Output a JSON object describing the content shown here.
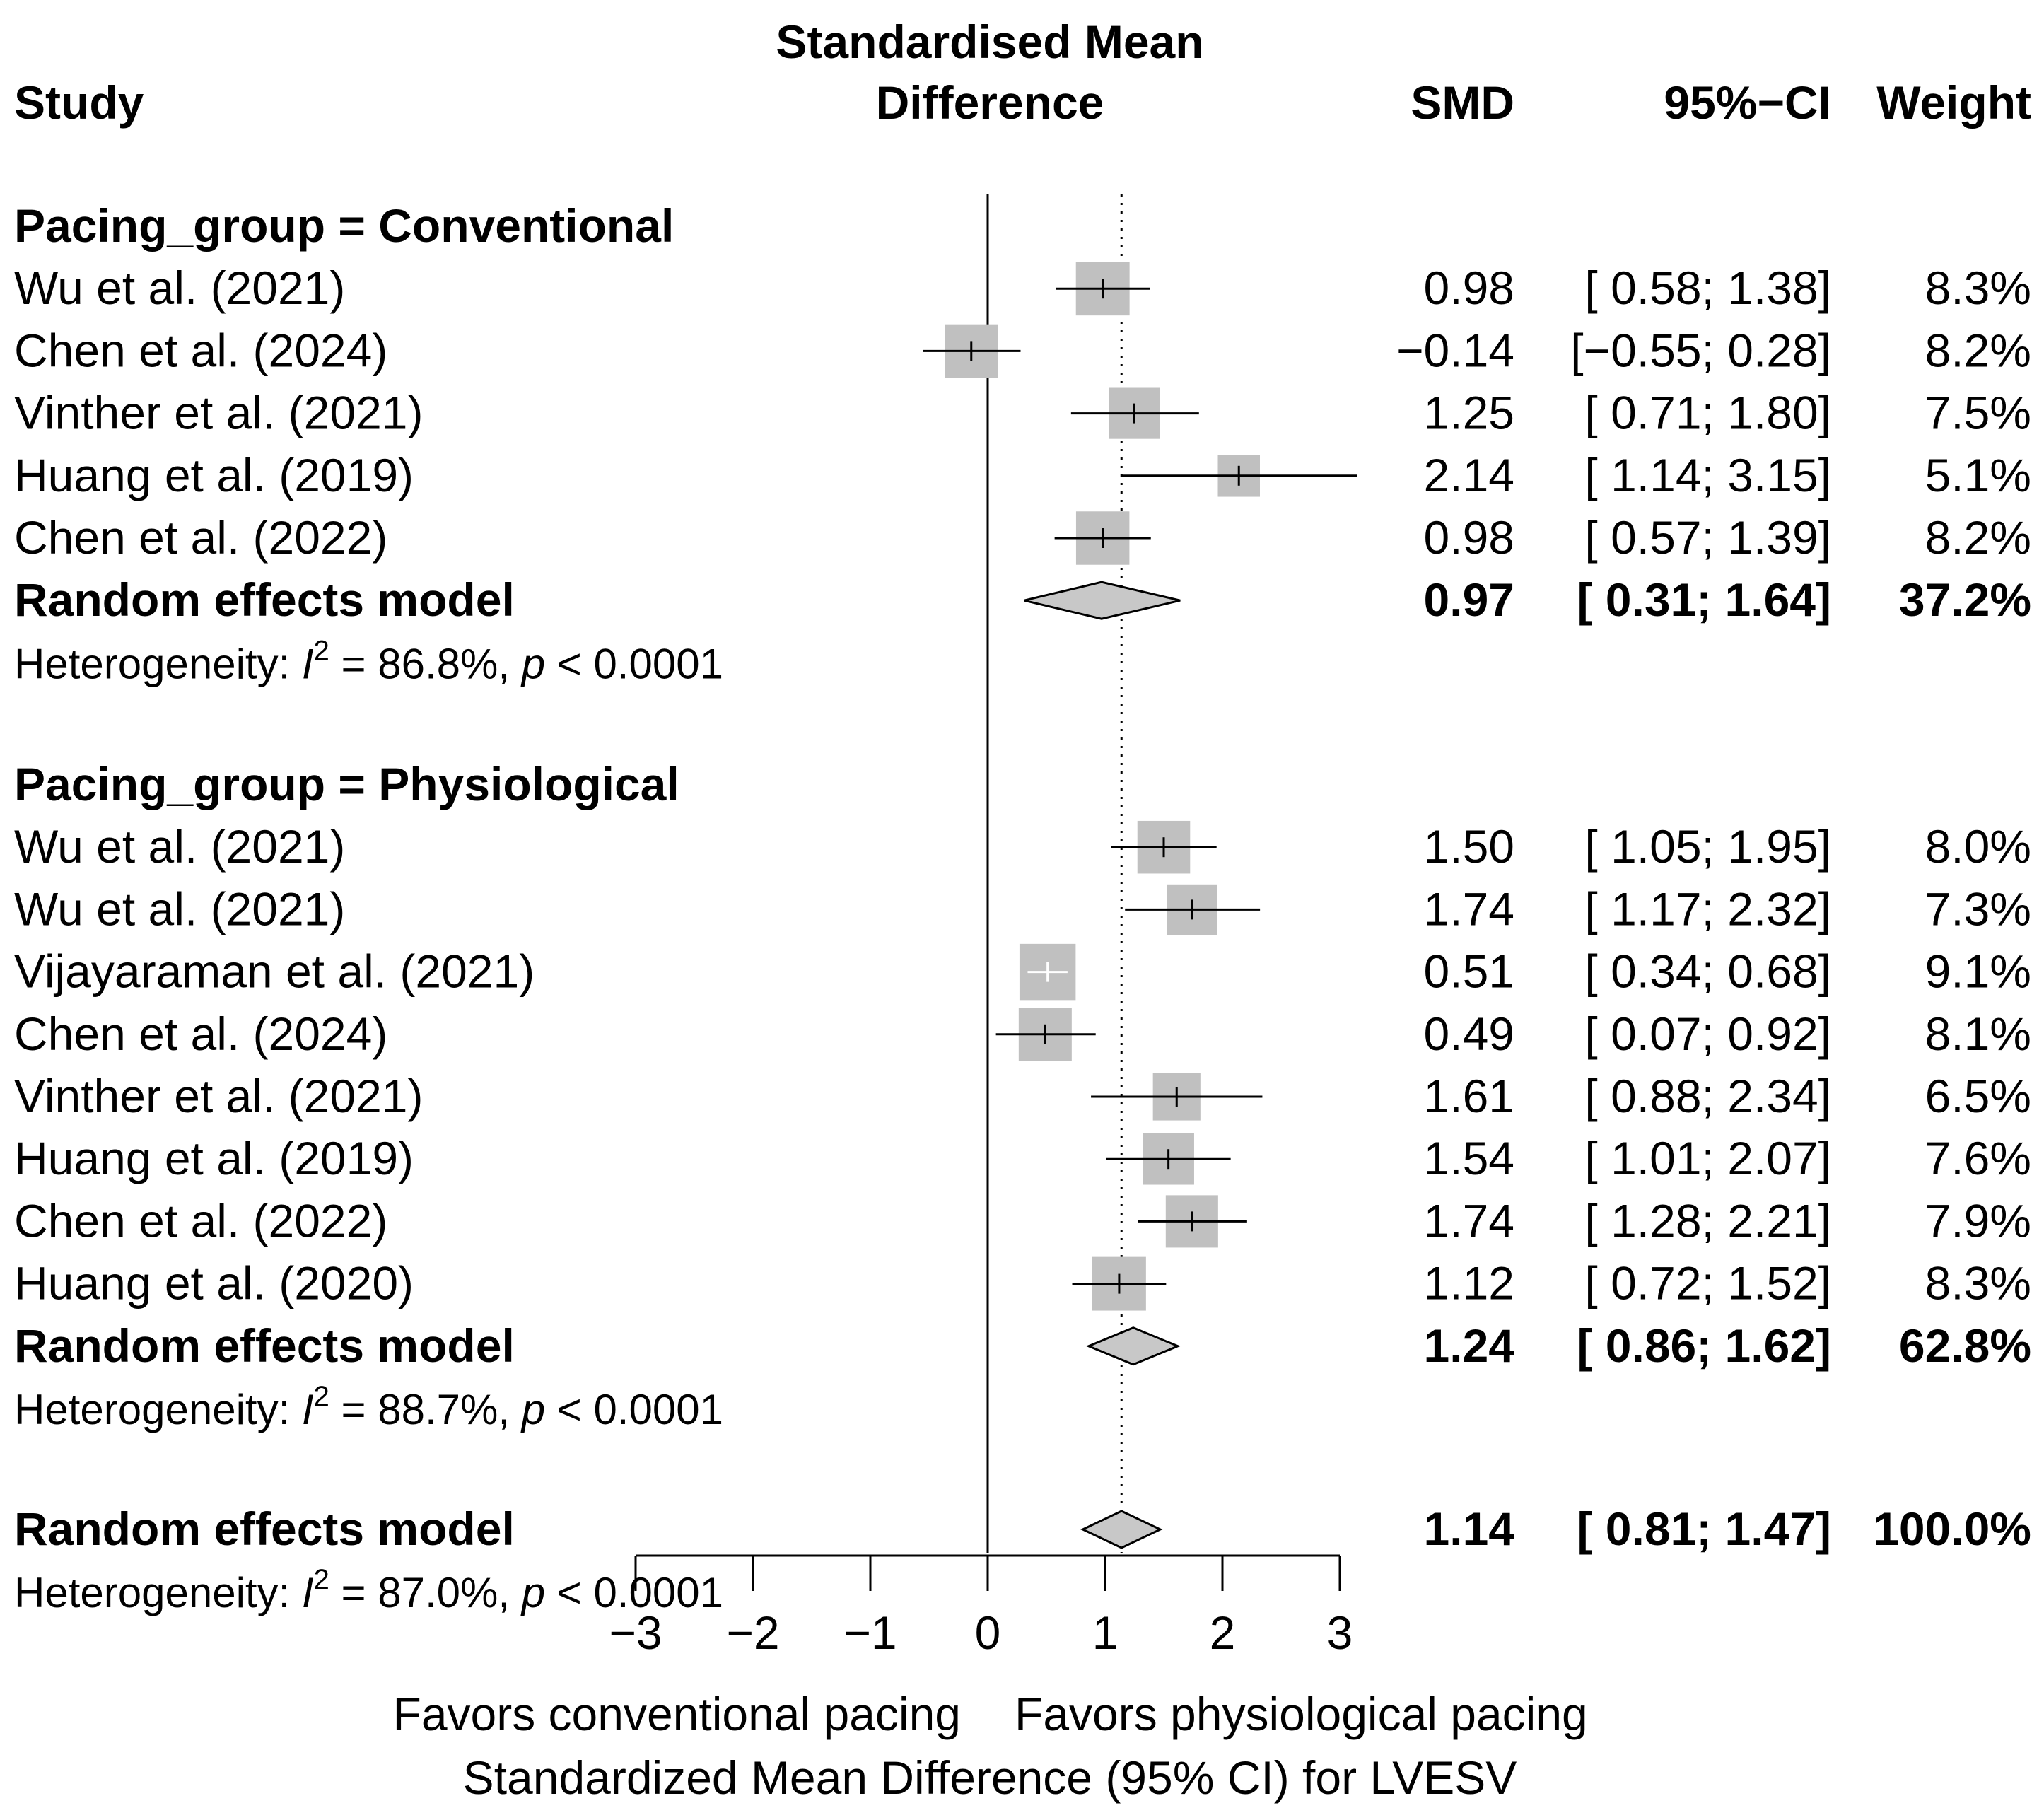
{
  "headers": {
    "study": "Study",
    "plot_line1": "Standardised Mean",
    "plot_line2": "Difference",
    "smd": "SMD",
    "ci": "95%−CI",
    "weight": "Weight"
  },
  "chart_data": {
    "type": "forest",
    "xlabel": "Standardized Mean Difference (95% CI) for LVESV",
    "xlim": [
      -3,
      3
    ],
    "xticks": [
      -3,
      -2,
      -1,
      0,
      1,
      2,
      3
    ],
    "xtick_labels": [
      "−3",
      "−2",
      "−1",
      "0",
      "1",
      "2",
      "3"
    ],
    "favor_left": "Favors conventional pacing",
    "favor_right": "Favors physiological pacing",
    "reference_line": 0,
    "overall_line": 1.14,
    "groups": [
      {
        "label": "Pacing_group = Conventional",
        "studies": [
          {
            "name": "Wu et al. (2021)",
            "smd": 0.98,
            "lower": 0.58,
            "upper": 1.38,
            "weight": 8.3,
            "smd_text": "0.98",
            "ci_text": "[ 0.58; 1.38]",
            "weight_text": "8.3%"
          },
          {
            "name": "Chen et al. (2024)",
            "smd": -0.14,
            "lower": -0.55,
            "upper": 0.28,
            "weight": 8.2,
            "smd_text": "−0.14",
            "ci_text": "[−0.55; 0.28]",
            "weight_text": "8.2%"
          },
          {
            "name": "Vinther et al. (2021)",
            "smd": 1.25,
            "lower": 0.71,
            "upper": 1.8,
            "weight": 7.5,
            "smd_text": "1.25",
            "ci_text": "[ 0.71; 1.80]",
            "weight_text": "7.5%"
          },
          {
            "name": "Huang et al. (2019)",
            "smd": 2.14,
            "lower": 1.14,
            "upper": 3.15,
            "weight": 5.1,
            "smd_text": "2.14",
            "ci_text": "[ 1.14; 3.15]",
            "weight_text": "5.1%"
          },
          {
            "name": "Chen et al. (2022)",
            "smd": 0.98,
            "lower": 0.57,
            "upper": 1.39,
            "weight": 8.2,
            "smd_text": "0.98",
            "ci_text": "[ 0.57; 1.39]",
            "weight_text": "8.2%"
          }
        ],
        "model": {
          "label": "Random effects model",
          "smd": 0.97,
          "lower": 0.31,
          "upper": 1.64,
          "smd_text": "0.97",
          "ci_text": "[ 0.31; 1.64]",
          "weight_text": "37.2%"
        },
        "heterogeneity": {
          "prefix": "Heterogeneity: ",
          "i": "I",
          "sup": "2",
          "mid": " = 86.8%, ",
          "p": "p",
          "suffix": " < 0.0001"
        }
      },
      {
        "label": "Pacing_group = Physiological",
        "studies": [
          {
            "name": "Wu et al. (2021)",
            "smd": 1.5,
            "lower": 1.05,
            "upper": 1.95,
            "weight": 8.0,
            "smd_text": "1.50",
            "ci_text": "[ 1.05; 1.95]",
            "weight_text": "8.0%"
          },
          {
            "name": "Wu et al. (2021)",
            "smd": 1.74,
            "lower": 1.17,
            "upper": 2.32,
            "weight": 7.3,
            "smd_text": "1.74",
            "ci_text": "[ 1.17; 2.32]",
            "weight_text": "7.3%"
          },
          {
            "name": "Vijayaraman et al. (2021)",
            "smd": 0.51,
            "lower": 0.34,
            "upper": 0.68,
            "weight": 9.1,
            "smd_text": "0.51",
            "ci_text": "[ 0.34; 0.68]",
            "weight_text": "9.1%"
          },
          {
            "name": "Chen et al. (2024)",
            "smd": 0.49,
            "lower": 0.07,
            "upper": 0.92,
            "weight": 8.1,
            "smd_text": "0.49",
            "ci_text": "[ 0.07; 0.92]",
            "weight_text": "8.1%"
          },
          {
            "name": "Vinther et al. (2021)",
            "smd": 1.61,
            "lower": 0.88,
            "upper": 2.34,
            "weight": 6.5,
            "smd_text": "1.61",
            "ci_text": "[ 0.88; 2.34]",
            "weight_text": "6.5%"
          },
          {
            "name": "Huang et al. (2019)",
            "smd": 1.54,
            "lower": 1.01,
            "upper": 2.07,
            "weight": 7.6,
            "smd_text": "1.54",
            "ci_text": "[ 1.01; 2.07]",
            "weight_text": "7.6%"
          },
          {
            "name": "Chen et al. (2022)",
            "smd": 1.74,
            "lower": 1.28,
            "upper": 2.21,
            "weight": 7.9,
            "smd_text": "1.74",
            "ci_text": "[ 1.28; 2.21]",
            "weight_text": "7.9%"
          },
          {
            "name": "Huang et al. (2020)",
            "smd": 1.12,
            "lower": 0.72,
            "upper": 1.52,
            "weight": 8.3,
            "smd_text": "1.12",
            "ci_text": "[ 0.72; 1.52]",
            "weight_text": "8.3%"
          }
        ],
        "model": {
          "label": "Random effects model",
          "smd": 1.24,
          "lower": 0.86,
          "upper": 1.62,
          "smd_text": "1.24",
          "ci_text": "[ 0.86; 1.62]",
          "weight_text": "62.8%"
        },
        "heterogeneity": {
          "prefix": "Heterogeneity: ",
          "i": "I",
          "sup": "2",
          "mid": " = 88.7%, ",
          "p": "p",
          "suffix": " < 0.0001"
        }
      }
    ],
    "overall": {
      "label": "Random effects model",
      "smd": 1.14,
      "lower": 0.81,
      "upper": 1.47,
      "smd_text": "1.14",
      "ci_text": "[ 0.81; 1.47]",
      "weight_text": "100.0%",
      "heterogeneity": {
        "prefix": "Heterogeneity: ",
        "i": "I",
        "sup": "2",
        "mid": " = 87.0%, ",
        "p": "p",
        "suffix": " < 0.0001"
      }
    }
  },
  "colors": {
    "box": "#c0c0c0",
    "diamond": "#c8c8c8",
    "line": "#000000",
    "ci_inside": "#ffffff"
  }
}
